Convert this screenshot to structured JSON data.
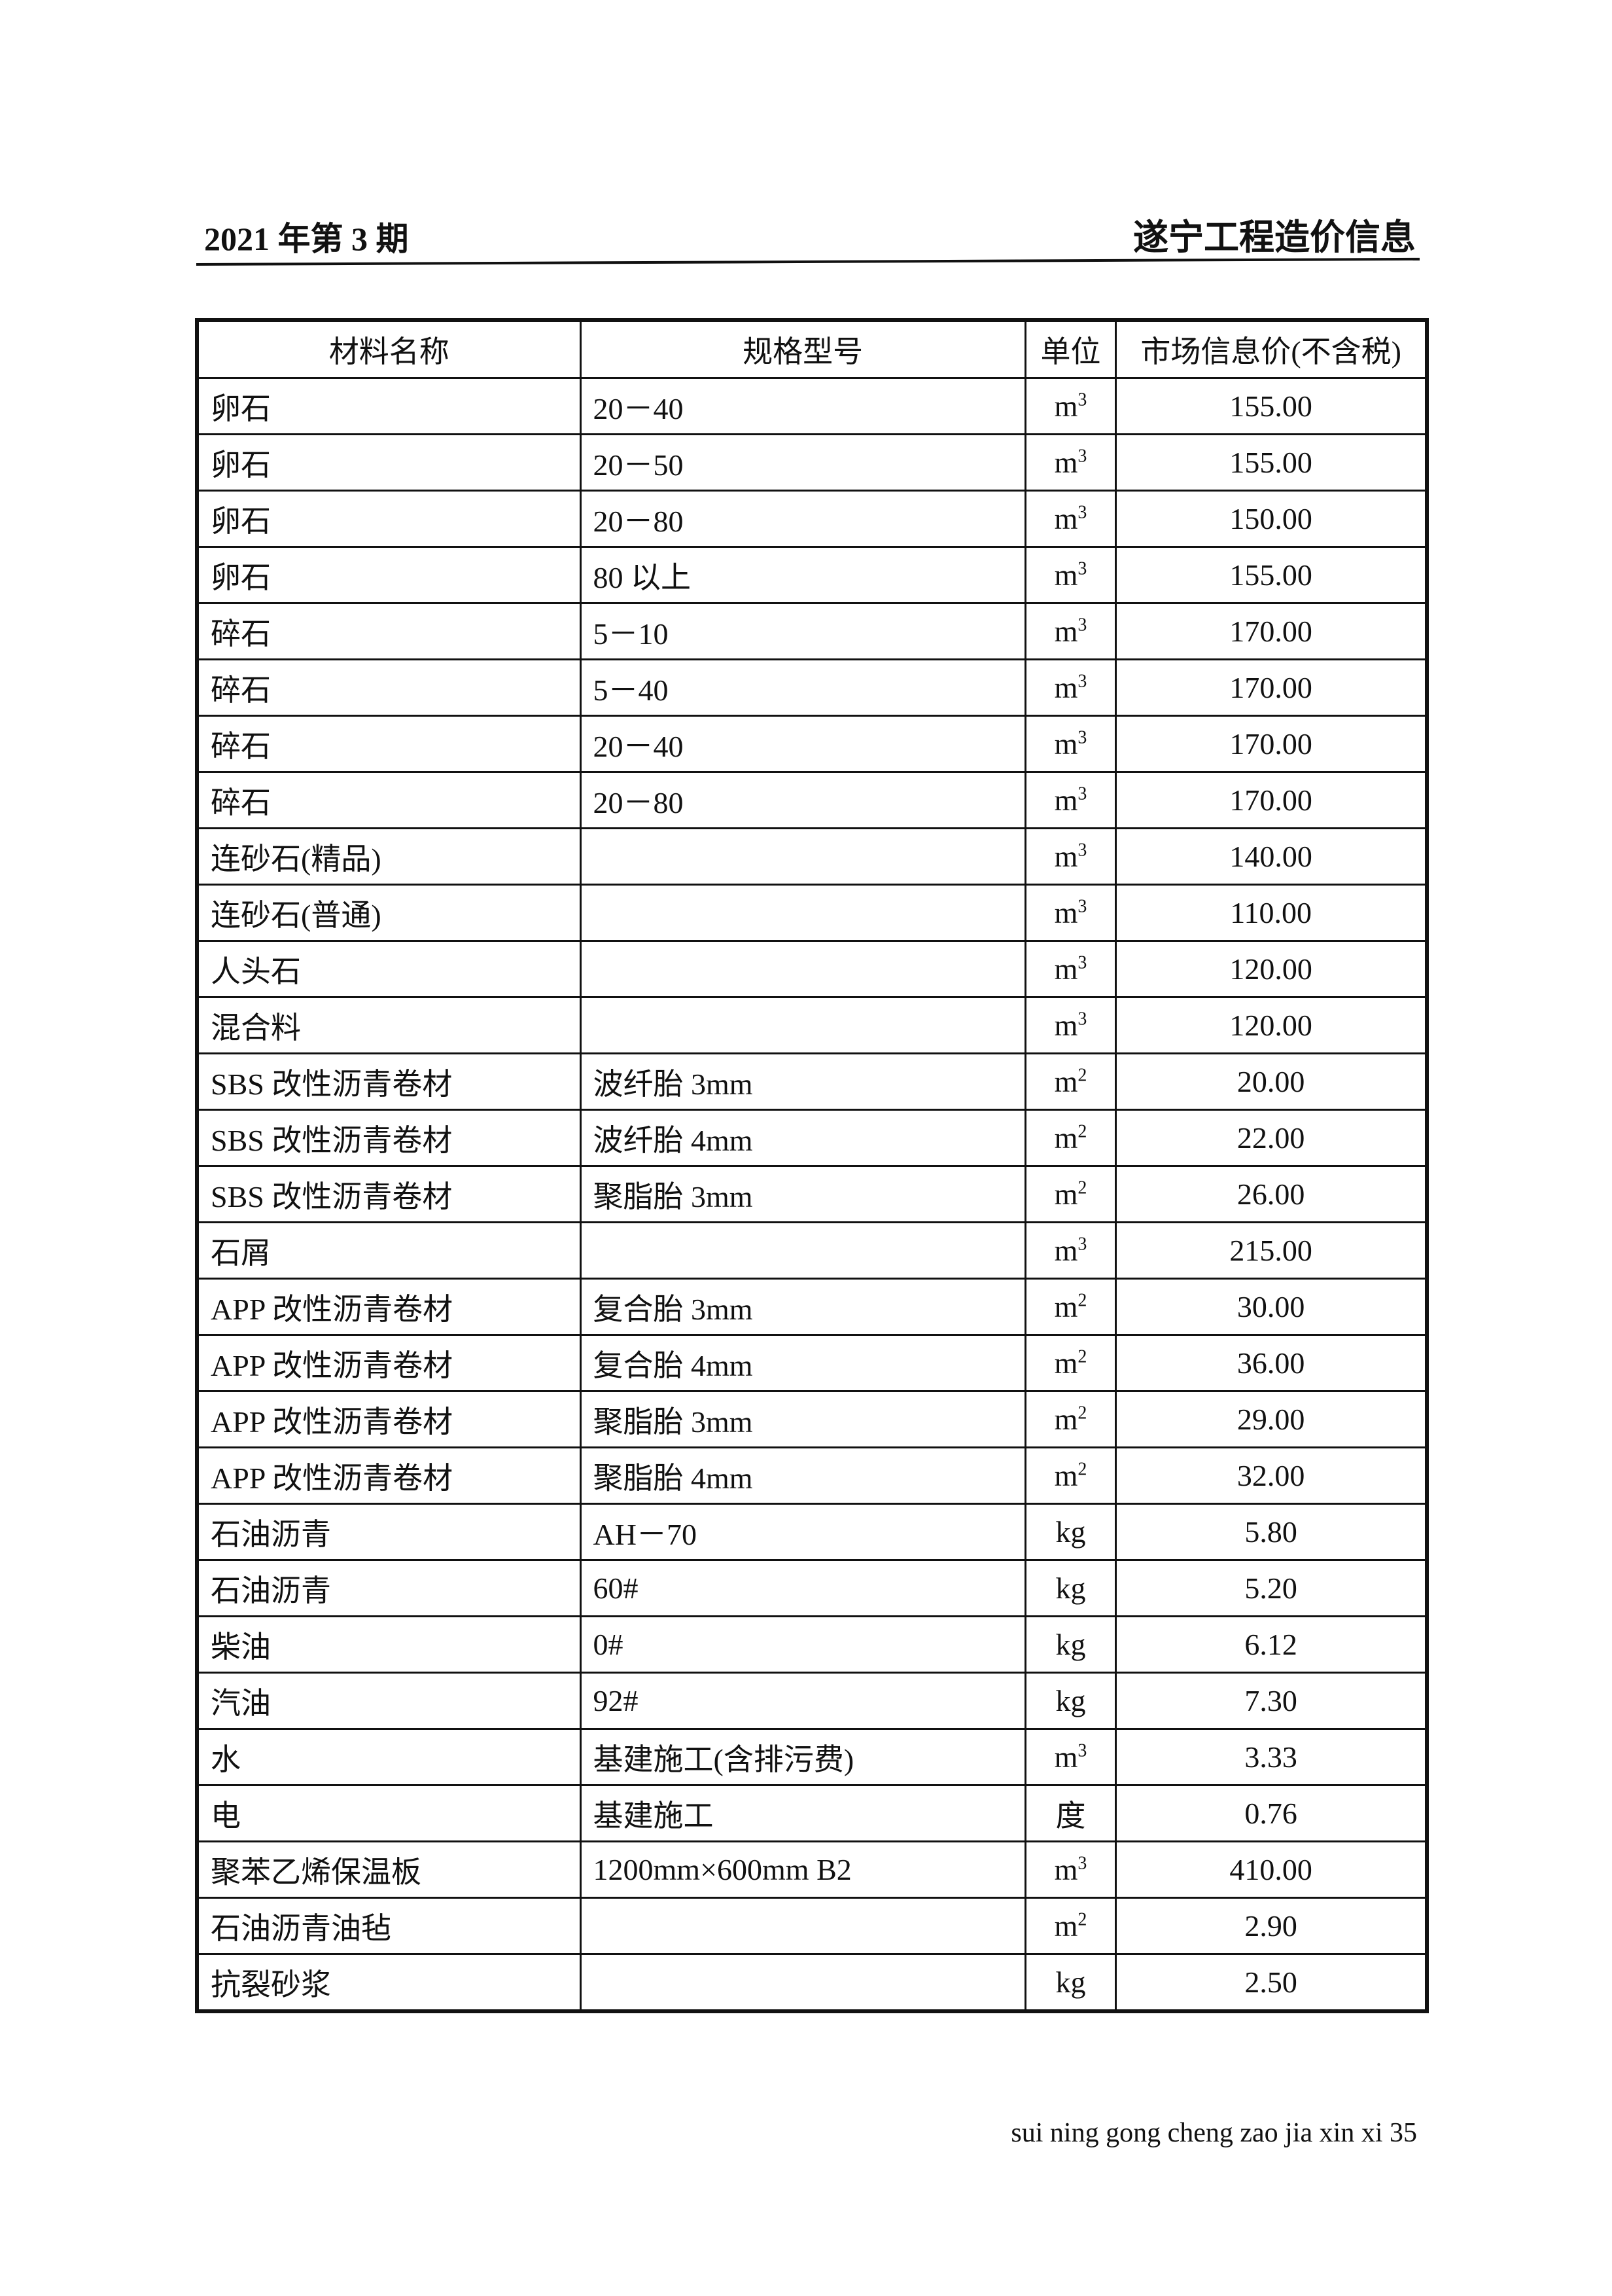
{
  "header": {
    "issue": "2021 年第 3 期",
    "publication": "遂宁工程造价信息"
  },
  "table": {
    "columns": [
      "材料名称",
      "规格型号",
      "单位",
      "市场信息价(不含税)"
    ],
    "rows": [
      {
        "name": "卵石",
        "spec": "20－40",
        "unit": "m",
        "unit_sup": "3",
        "price": "155.00"
      },
      {
        "name": "卵石",
        "spec": "20－50",
        "unit": "m",
        "unit_sup": "3",
        "price": "155.00"
      },
      {
        "name": "卵石",
        "spec": "20－80",
        "unit": "m",
        "unit_sup": "3",
        "price": "150.00"
      },
      {
        "name": "卵石",
        "spec": "80 以上",
        "unit": "m",
        "unit_sup": "3",
        "price": "155.00"
      },
      {
        "name": "碎石",
        "spec": "5－10",
        "unit": "m",
        "unit_sup": "3",
        "price": "170.00"
      },
      {
        "name": "碎石",
        "spec": "5－40",
        "unit": "m",
        "unit_sup": "3",
        "price": "170.00"
      },
      {
        "name": "碎石",
        "spec": "20－40",
        "unit": "m",
        "unit_sup": "3",
        "price": "170.00"
      },
      {
        "name": "碎石",
        "spec": "20－80",
        "unit": "m",
        "unit_sup": "3",
        "price": "170.00"
      },
      {
        "name": "连砂石(精品)",
        "spec": "",
        "unit": "m",
        "unit_sup": "3",
        "price": "140.00"
      },
      {
        "name": "连砂石(普通)",
        "spec": "",
        "unit": "m",
        "unit_sup": "3",
        "price": "110.00"
      },
      {
        "name": "人头石",
        "spec": "",
        "unit": "m",
        "unit_sup": "3",
        "price": "120.00"
      },
      {
        "name": "混合料",
        "spec": "",
        "unit": "m",
        "unit_sup": "3",
        "price": "120.00"
      },
      {
        "name": "SBS 改性沥青卷材",
        "spec": "波纤胎 3mm",
        "unit": "m",
        "unit_sup": "2",
        "price": "20.00"
      },
      {
        "name": "SBS 改性沥青卷材",
        "spec": "波纤胎 4mm",
        "unit": "m",
        "unit_sup": "2",
        "price": "22.00"
      },
      {
        "name": "SBS 改性沥青卷材",
        "spec": "聚脂胎 3mm",
        "unit": "m",
        "unit_sup": "2",
        "price": "26.00"
      },
      {
        "name": "石屑",
        "spec": "",
        "unit": "m",
        "unit_sup": "3",
        "price": "215.00"
      },
      {
        "name": "APP 改性沥青卷材",
        "spec": "复合胎 3mm",
        "unit": "m",
        "unit_sup": "2",
        "price": "30.00"
      },
      {
        "name": "APP 改性沥青卷材",
        "spec": "复合胎 4mm",
        "unit": "m",
        "unit_sup": "2",
        "price": "36.00"
      },
      {
        "name": "APP 改性沥青卷材",
        "spec": "聚脂胎 3mm",
        "unit": "m",
        "unit_sup": "2",
        "price": "29.00"
      },
      {
        "name": "APP 改性沥青卷材",
        "spec": "聚脂胎 4mm",
        "unit": "m",
        "unit_sup": "2",
        "price": "32.00"
      },
      {
        "name": "石油沥青",
        "spec": "AH－70",
        "unit": "kg",
        "unit_sup": "",
        "price": "5.80"
      },
      {
        "name": "石油沥青",
        "spec": "60#",
        "unit": "kg",
        "unit_sup": "",
        "price": "5.20"
      },
      {
        "name": "柴油",
        "spec": "0#",
        "unit": "kg",
        "unit_sup": "",
        "price": "6.12"
      },
      {
        "name": "汽油",
        "spec": "92#",
        "unit": "kg",
        "unit_sup": "",
        "price": "7.30"
      },
      {
        "name": "水",
        "spec": "基建施工(含排污费)",
        "unit": "m",
        "unit_sup": "3",
        "price": "3.33"
      },
      {
        "name": "电",
        "spec": "基建施工",
        "unit": "度",
        "unit_sup": "",
        "price": "0.76"
      },
      {
        "name": "聚苯乙烯保温板",
        "spec": "1200mm×600mm B2",
        "unit": "m",
        "unit_sup": "3",
        "price": "410.00"
      },
      {
        "name": "石油沥青油毡",
        "spec": "",
        "unit": "m",
        "unit_sup": "2",
        "price": "2.90"
      },
      {
        "name": "抗裂砂浆",
        "spec": "",
        "unit": "kg",
        "unit_sup": "",
        "price": "2.50"
      }
    ]
  },
  "footer": {
    "page_text": "sui ning gong cheng zao jia xin xi 35"
  }
}
